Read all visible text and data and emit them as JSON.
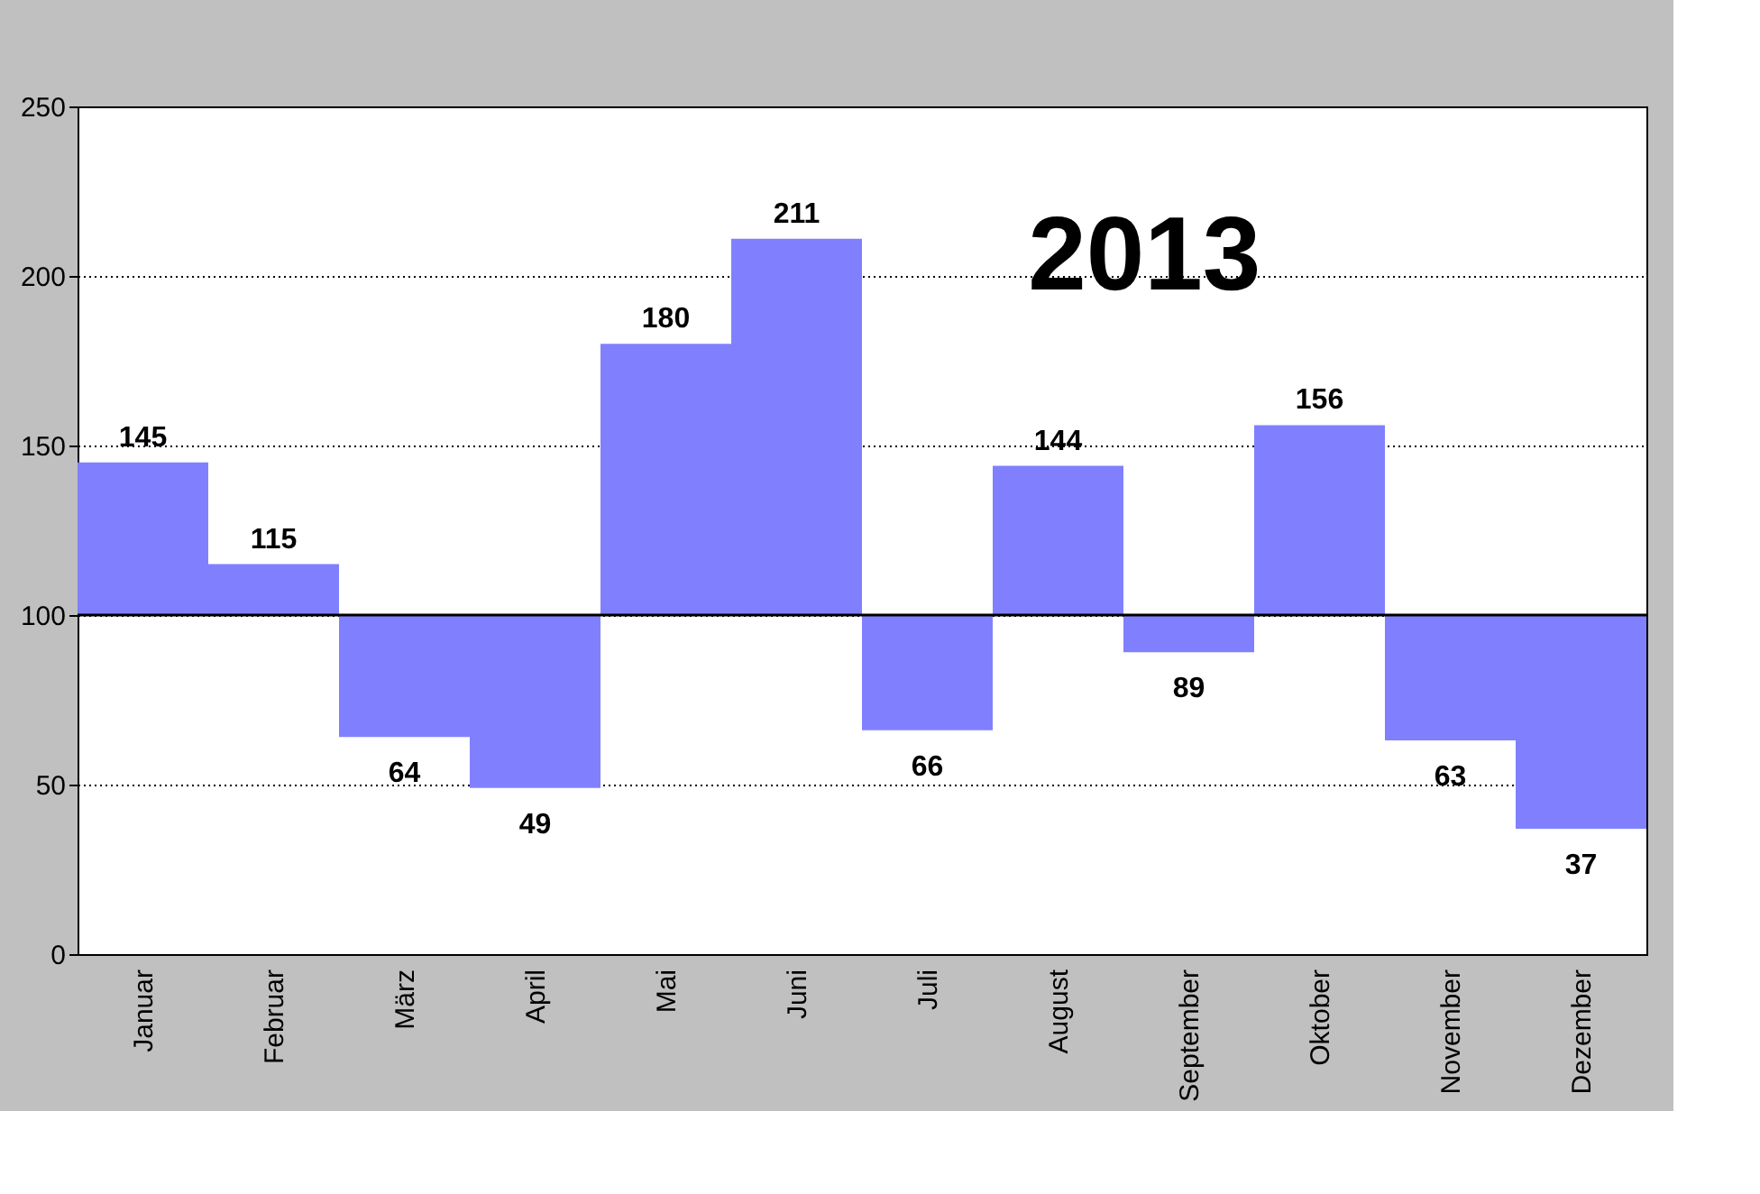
{
  "chart_data": {
    "type": "bar",
    "title": "2013",
    "categories": [
      "Januar",
      "Februar",
      "März",
      "April",
      "Mai",
      "Juni",
      "Juli",
      "August",
      "September",
      "Oktober",
      "November",
      "Dezember"
    ],
    "base": [
      100,
      100,
      100,
      100,
      100,
      100,
      100,
      100,
      100,
      100,
      100,
      100
    ],
    "values": [
      45,
      15,
      -36,
      -51,
      80,
      111,
      -34,
      44,
      -11,
      56,
      -37,
      -63
    ],
    "value_labels": [
      "145",
      "115",
      "64",
      "49",
      "180",
      "211",
      "66",
      "144",
      "89",
      "156",
      "63",
      "37"
    ],
    "color": "#8080ff",
    "ylim": [
      0,
      250
    ],
    "yticks": [
      0,
      50,
      100,
      150,
      200,
      250
    ],
    "ref_lines": [
      {
        "axis": "y",
        "value": 100,
        "color": "#000000"
      }
    ],
    "grid": "y"
  }
}
